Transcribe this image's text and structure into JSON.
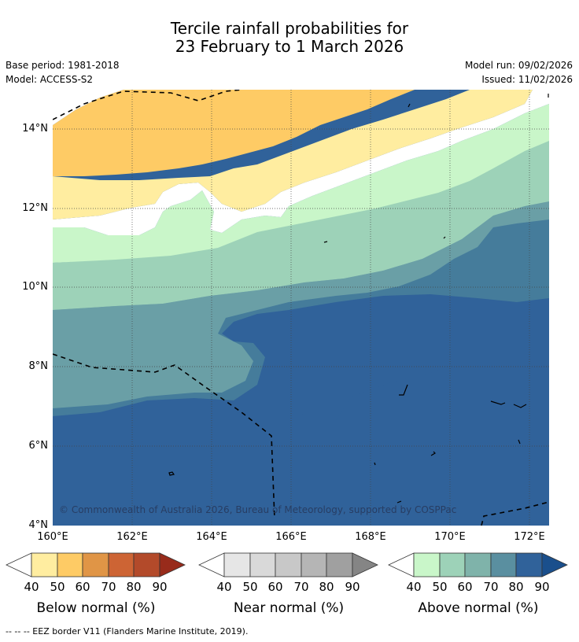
{
  "header": {
    "title_line1": "Tercile rainfall probabilities for",
    "title_line2": "23 February to 1 March 2026",
    "base_period": "Base period: 1981-2018",
    "model": "Model: ACCESS-S2",
    "model_run": "Model run: 09/02/2026",
    "issued": "Issued: 11/02/2026"
  },
  "map": {
    "lat_labels": [
      "14°N",
      "12°N",
      "10°N",
      "8°N",
      "6°N",
      "4°N"
    ],
    "lon_labels": [
      "160°E",
      "162°E",
      "164°E",
      "166°E",
      "168°E",
      "170°E",
      "172°E"
    ],
    "lat_range": [
      4,
      15
    ],
    "lon_range": [
      160,
      172.5
    ],
    "copyright": "© Commonwealth of Australia 2026, Bureau of Meteorology, supported by COSPPac"
  },
  "colorbars": [
    {
      "title": "Below normal (%)",
      "ticks": [
        "40",
        "50",
        "60",
        "70",
        "80",
        "90"
      ],
      "colors": [
        "#ffffff",
        "#ffeda0",
        "#fecb65",
        "#e09546",
        "#cd6434",
        "#b34a2a",
        "#982b1b"
      ]
    },
    {
      "title": "Near normal (%)",
      "ticks": [
        "40",
        "50",
        "60",
        "70",
        "80",
        "90"
      ],
      "colors": [
        "#ffffff",
        "#e6e6e6",
        "#d9d9d9",
        "#c8c8c8",
        "#b5b5b5",
        "#a0a0a0",
        "#858585"
      ]
    },
    {
      "title": "Above normal (%)",
      "ticks": [
        "40",
        "50",
        "60",
        "70",
        "80",
        "90"
      ],
      "colors": [
        "#ffffff",
        "#c9f6c9",
        "#9dd2b8",
        "#7fb3aa",
        "#5a8fa0",
        "#30629a",
        "#1a4f8c"
      ]
    }
  ],
  "footnote": "--  --  -- EEZ border V11 (Flanders Marine Institute, 2019)."
}
